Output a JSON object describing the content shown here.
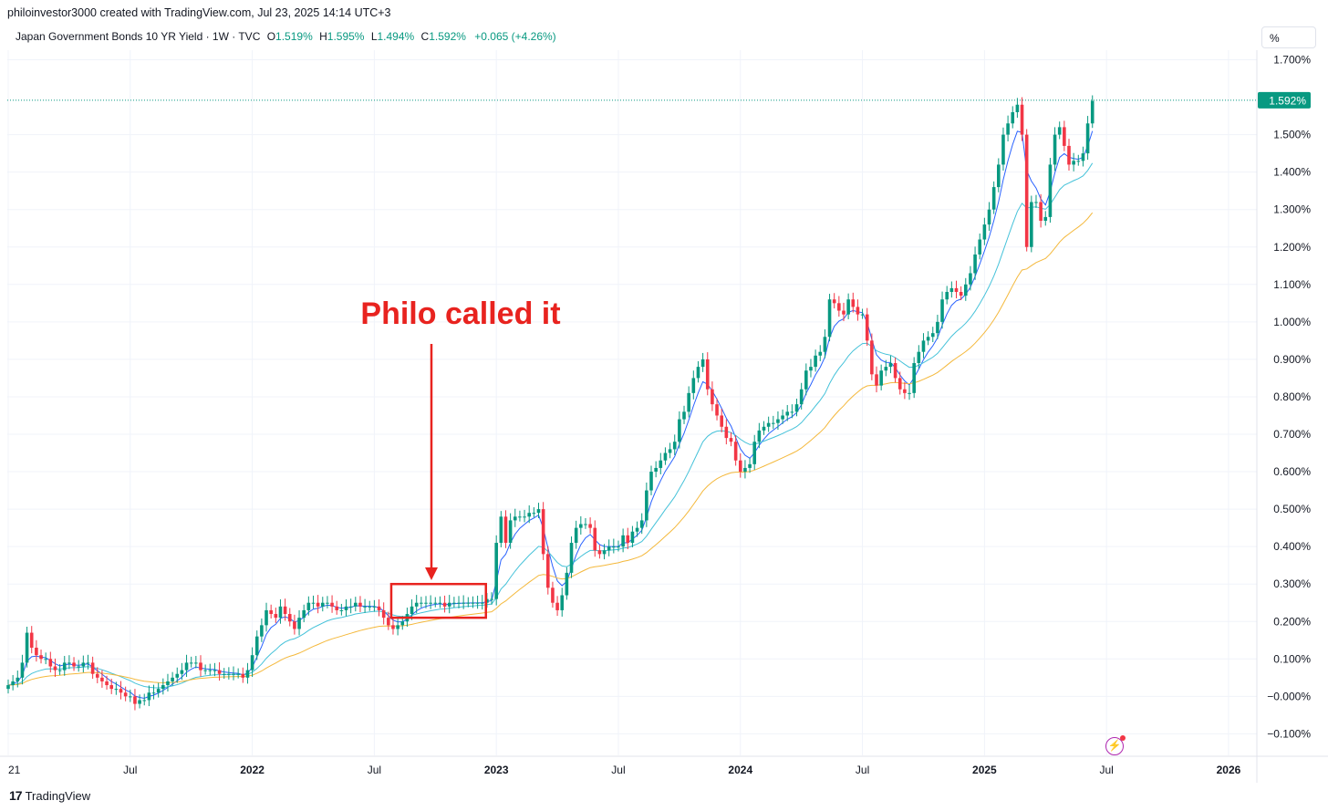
{
  "header": {
    "credit": "philoinvestor3000 created with TradingView.com, Jul 23, 2025 14:14 UTC+3"
  },
  "legend": {
    "symbol": "Japan Government Bonds 10 YR Yield · 1W · TVC",
    "open_label": "O",
    "open": "1.519%",
    "high_label": "H",
    "high": "1.595%",
    "low_label": "L",
    "low": "1.494%",
    "close_label": "C",
    "close": "1.592%",
    "change": "+0.065 (+4.26%)"
  },
  "scale_button": "%",
  "footer": {
    "brand": "TradingView",
    "brand_mark": "17"
  },
  "annotation": {
    "text": "Philo called it"
  },
  "chart_data": {
    "type": "candlestick",
    "title": "Japan Government Bonds 10 YR Yield · 1W · TVC",
    "ylabel": "%",
    "ylim": [
      -0.13,
      1.73
    ],
    "y_ticks": [
      "1.700%",
      "1.500%",
      "1.400%",
      "1.300%",
      "1.200%",
      "1.100%",
      "1.000%",
      "0.900%",
      "0.800%",
      "0.700%",
      "0.600%",
      "0.500%",
      "0.400%",
      "0.300%",
      "0.200%",
      "0.100%",
      "−0.000%",
      "−0.100%"
    ],
    "y_tick_values": [
      1.7,
      1.5,
      1.4,
      1.3,
      1.2,
      1.1,
      1.0,
      0.9,
      0.8,
      0.7,
      0.6,
      0.5,
      0.4,
      0.3,
      0.2,
      0.1,
      0.0,
      -0.1
    ],
    "x_ticks": [
      "21",
      "Jul",
      "2022",
      "Jul",
      "2023",
      "Jul",
      "2024",
      "Jul",
      "2025",
      "Jul",
      "2026"
    ],
    "x_tick_values": [
      0,
      26,
      52,
      78,
      104,
      130,
      156,
      182,
      208,
      234,
      260
    ],
    "x_bold": [
      2,
      4,
      6,
      8,
      10
    ],
    "last_price_label": "1.592%",
    "last_price": 1.592,
    "up_color": "#089981",
    "down_color": "#f23645",
    "series": [
      {
        "name": "Yield",
        "kind": "candles",
        "close_weekly": [
          0.03,
          0.04,
          0.05,
          0.09,
          0.17,
          0.13,
          0.11,
          0.1,
          0.1,
          0.08,
          0.07,
          0.07,
          0.09,
          0.09,
          0.08,
          0.08,
          0.09,
          0.09,
          0.06,
          0.05,
          0.04,
          0.03,
          0.02,
          0.02,
          0.01,
          0.0,
          0.0,
          -0.02,
          -0.01,
          -0.01,
          0.01,
          0.01,
          0.02,
          0.03,
          0.04,
          0.05,
          0.06,
          0.07,
          0.09,
          0.09,
          0.09,
          0.07,
          0.07,
          0.07,
          0.07,
          0.06,
          0.06,
          0.06,
          0.06,
          0.06,
          0.05,
          0.07,
          0.11,
          0.16,
          0.19,
          0.23,
          0.22,
          0.21,
          0.24,
          0.22,
          0.2,
          0.18,
          0.21,
          0.23,
          0.25,
          0.25,
          0.24,
          0.25,
          0.25,
          0.24,
          0.23,
          0.23,
          0.24,
          0.24,
          0.25,
          0.24,
          0.24,
          0.24,
          0.24,
          0.23,
          0.21,
          0.19,
          0.18,
          0.19,
          0.2,
          0.22,
          0.24,
          0.25,
          0.25,
          0.25,
          0.25,
          0.25,
          0.25,
          0.24,
          0.25,
          0.25,
          0.25,
          0.25,
          0.25,
          0.25,
          0.25,
          0.25,
          0.26,
          0.26,
          0.41,
          0.48,
          0.41,
          0.47,
          0.48,
          0.48,
          0.48,
          0.49,
          0.49,
          0.5,
          0.38,
          0.29,
          0.25,
          0.23,
          0.27,
          0.33,
          0.41,
          0.45,
          0.46,
          0.46,
          0.45,
          0.39,
          0.38,
          0.39,
          0.4,
          0.4,
          0.4,
          0.43,
          0.41,
          0.44,
          0.45,
          0.47,
          0.55,
          0.6,
          0.61,
          0.63,
          0.65,
          0.66,
          0.68,
          0.74,
          0.76,
          0.81,
          0.85,
          0.88,
          0.9,
          0.82,
          0.78,
          0.75,
          0.72,
          0.69,
          0.68,
          0.63,
          0.6,
          0.61,
          0.62,
          0.68,
          0.71,
          0.72,
          0.73,
          0.73,
          0.74,
          0.75,
          0.76,
          0.76,
          0.78,
          0.82,
          0.87,
          0.88,
          0.91,
          0.92,
          0.96,
          1.06,
          1.05,
          1.03,
          1.02,
          1.06,
          1.04,
          1.02,
          1.02,
          0.95,
          0.86,
          0.83,
          0.87,
          0.88,
          0.89,
          0.85,
          0.82,
          0.81,
          0.81,
          0.89,
          0.92,
          0.95,
          0.96,
          0.97,
          1.0,
          1.06,
          1.08,
          1.09,
          1.08,
          1.07,
          1.1,
          1.13,
          1.18,
          1.22,
          1.26,
          1.3,
          1.36,
          1.42,
          1.5,
          1.53,
          1.56,
          1.58,
          1.5,
          1.2,
          1.32,
          1.32,
          1.27,
          1.28,
          1.42,
          1.5,
          1.52,
          1.47,
          1.42,
          1.43,
          1.43,
          1.45,
          1.53,
          1.59
        ]
      },
      {
        "name": "MA fast",
        "kind": "line",
        "color": "#2962ff"
      },
      {
        "name": "MA medium",
        "kind": "line",
        "color": "#45c2d9"
      },
      {
        "name": "MA slow",
        "kind": "line",
        "color": "#f4b83b"
      }
    ],
    "annotation": {
      "text": "Philo called it",
      "box_weeks": [
        82,
        101
      ],
      "box_range": [
        0.21,
        0.3
      ]
    }
  }
}
